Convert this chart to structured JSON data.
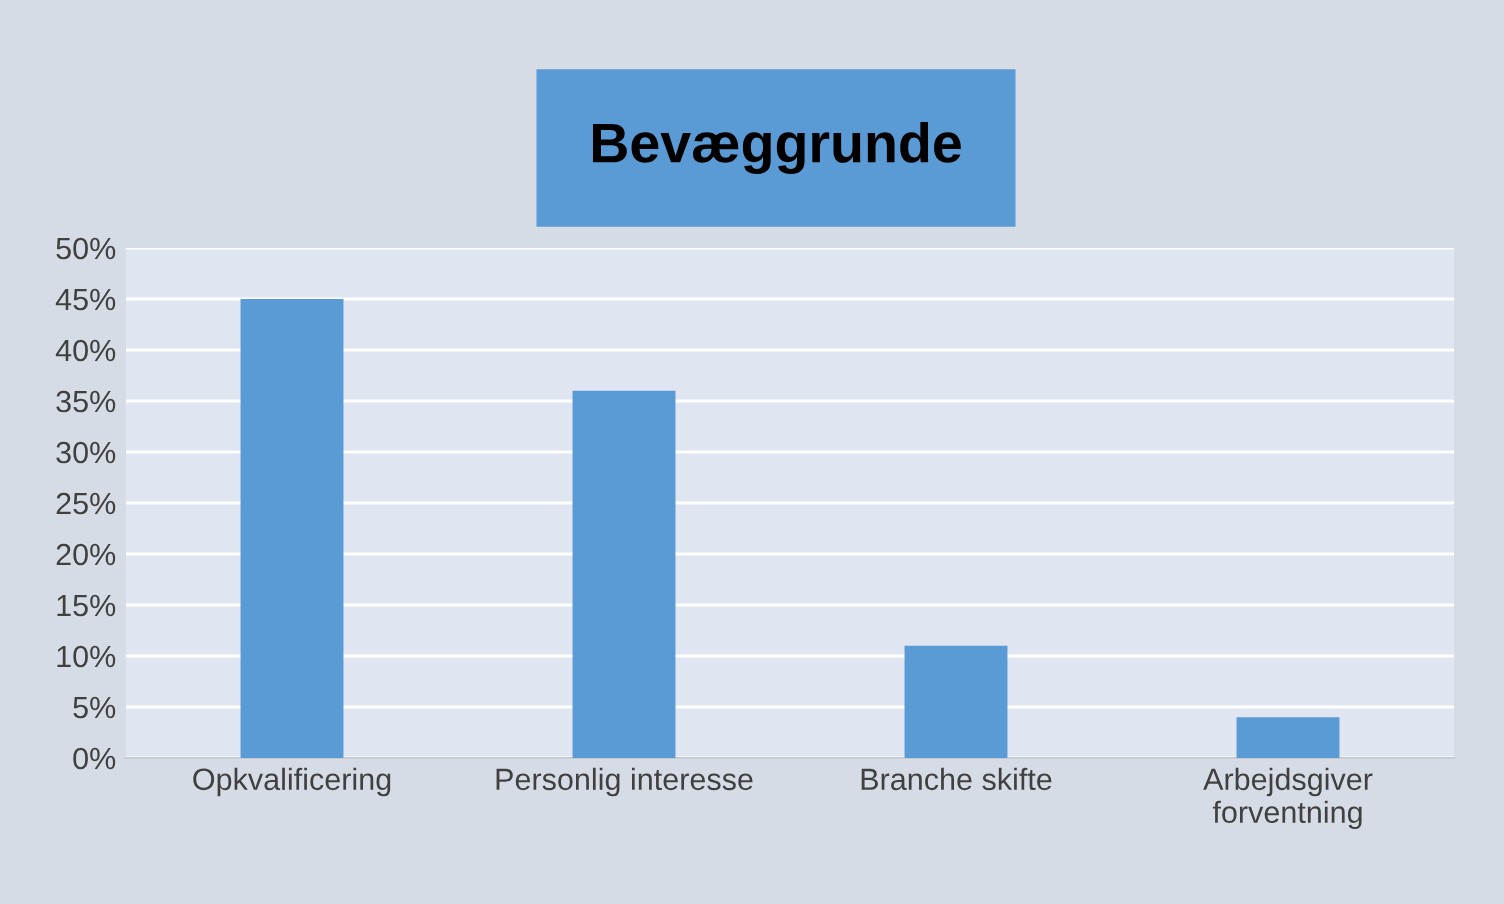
{
  "chart_data": {
    "type": "bar",
    "title": "Bevæggrunde",
    "categories": [
      "Opkvalificering",
      "Personlig interesse",
      "Branche skifte",
      "Arbejdsgiver\nforventning"
    ],
    "values": [
      45,
      36,
      11,
      4
    ],
    "color": "#5b9bd5",
    "ylim": [
      0,
      50
    ],
    "yticks": [
      {
        "value": 0,
        "label": "0%"
      },
      {
        "value": 5,
        "label": "5%"
      },
      {
        "value": 10,
        "label": "10%"
      },
      {
        "value": 15,
        "label": "15%"
      },
      {
        "value": 20,
        "label": "20%"
      },
      {
        "value": 25,
        "label": "25%"
      },
      {
        "value": 30,
        "label": "30%"
      },
      {
        "value": 35,
        "label": "35%"
      },
      {
        "value": 40,
        "label": "40%"
      },
      {
        "value": 45,
        "label": "45%"
      },
      {
        "value": 50,
        "label": "50%"
      }
    ],
    "grid": "y",
    "legend": false
  }
}
